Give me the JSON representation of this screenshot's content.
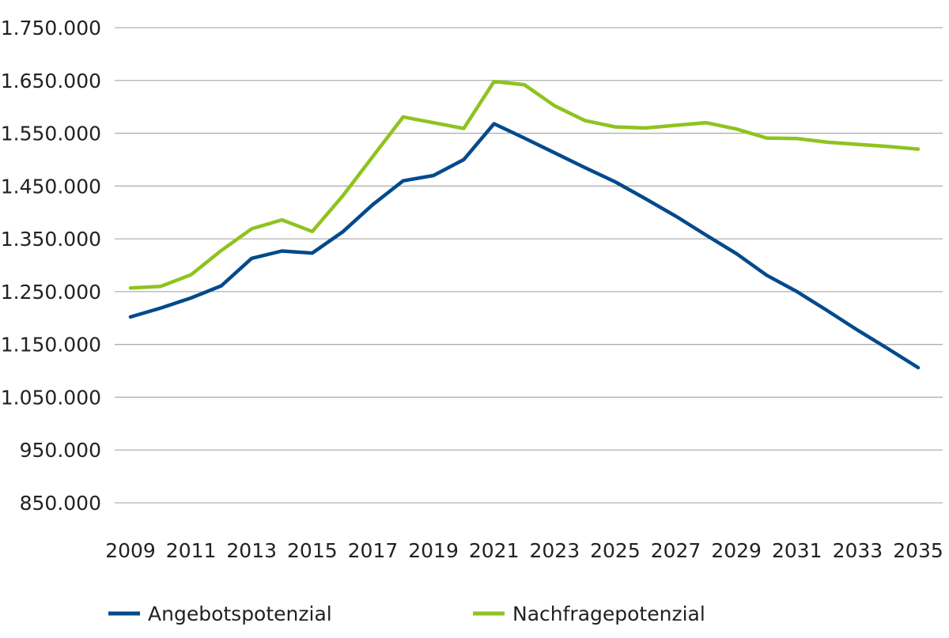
{
  "chart_data": {
    "type": "line",
    "title": "",
    "xlabel": "",
    "ylabel": "",
    "x": [
      2009,
      2010,
      2011,
      2012,
      2013,
      2014,
      2015,
      2016,
      2017,
      2018,
      2019,
      2020,
      2021,
      2022,
      2023,
      2024,
      2025,
      2026,
      2027,
      2028,
      2029,
      2030,
      2031,
      2032,
      2033,
      2034,
      2035
    ],
    "x_ticks": [
      "2009",
      "2011",
      "2013",
      "2015",
      "2017",
      "2019",
      "2021",
      "2023",
      "2025",
      "2027",
      "2029",
      "2031",
      "2033",
      "2035"
    ],
    "ylim": [
      850000,
      1750000
    ],
    "y_ticks": [
      "850.000",
      "950.000",
      "1.050.000",
      "1.150.000",
      "1.250.000",
      "1.350.000",
      "1.450.000",
      "1.550.000",
      "1.650.000",
      "1.750.000"
    ],
    "grid": "horizontal",
    "legend_position": "bottom",
    "series": [
      {
        "name": "Angebotspotenzial",
        "color": "#004a8c",
        "values": [
          1202000,
          1219000,
          1238000,
          1261000,
          1313000,
          1327000,
          1323000,
          1363000,
          1415000,
          1460000,
          1470000,
          1500000,
          1568000,
          1541000,
          1513000,
          1485000,
          1458000,
          1426000,
          1393000,
          1357000,
          1322000,
          1281000,
          1250000,
          1214000,
          1177000,
          1142000,
          1106000
        ]
      },
      {
        "name": "Nachfragepotenzial",
        "color": "#8fc31f",
        "values": [
          1257000,
          1260000,
          1282000,
          1328000,
          1369000,
          1386000,
          1364000,
          1431000,
          1506000,
          1581000,
          1570000,
          1559000,
          1648000,
          1642000,
          1602000,
          1574000,
          1562000,
          1560000,
          1565000,
          1570000,
          1558000,
          1541000,
          1540000,
          1533000,
          1529000,
          1525000,
          1520000
        ]
      }
    ]
  }
}
